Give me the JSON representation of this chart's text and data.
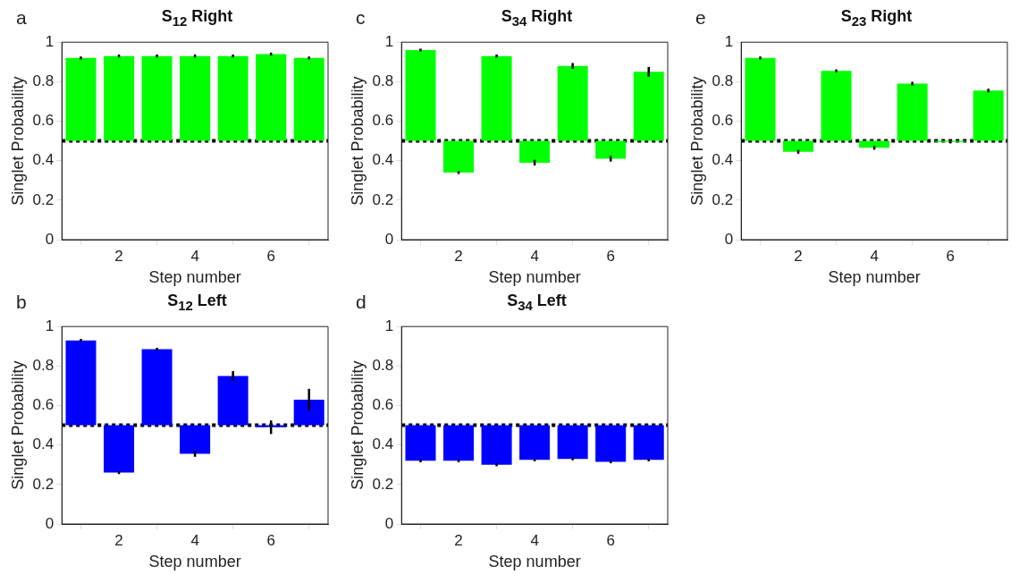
{
  "chart_data": [
    {
      "type": "bar",
      "title": "S$_{12}$ Right",
      "xlabel": "Step number",
      "ylabel": "Singlet Probability",
      "annotations": [
        "a"
      ],
      "x": [
        1,
        2,
        3,
        4,
        5,
        6,
        7
      ],
      "xlim": [
        0.5,
        7.5
      ],
      "xticks": [
        2,
        4,
        6
      ],
      "ylim": [
        0,
        1
      ],
      "yticks": [
        0,
        0.2,
        0.4,
        0.6,
        0.8,
        1
      ],
      "color": "#00ff00",
      "base": [
        0.5,
        0.5,
        0.5,
        0.5,
        0.5,
        0.5,
        0.5
      ],
      "values": [
        0.42,
        0.43,
        0.43,
        0.43,
        0.43,
        0.44,
        0.42
      ],
      "errors": [
        0.003,
        0.003,
        0.003,
        0.003,
        0.003,
        0.003,
        0.003
      ],
      "ref_lines": [
        {
          "axis": "y",
          "value": 0.5,
          "color": "#000000",
          "line_style": "dotted"
        }
      ]
    },
    {
      "type": "bar",
      "title": "S$_{34}$ Right",
      "xlabel": "Step number",
      "ylabel": "Singlet Probability",
      "annotations": [
        "c"
      ],
      "x": [
        1,
        2,
        3,
        4,
        5,
        6,
        7
      ],
      "xlim": [
        0.5,
        7.5
      ],
      "xticks": [
        2,
        4,
        6
      ],
      "ylim": [
        0,
        1
      ],
      "yticks": [
        0,
        0.2,
        0.4,
        0.6,
        0.8,
        1
      ],
      "color": "#00ff00",
      "base": [
        0.5,
        0.5,
        0.5,
        0.5,
        0.5,
        0.5,
        0.5
      ],
      "values": [
        0.46,
        -0.16,
        0.43,
        -0.11,
        0.38,
        -0.09,
        0.35
      ],
      "errors": [
        0.003,
        0.003,
        0.003,
        0.01,
        0.01,
        0.01,
        0.02
      ],
      "ref_lines": [
        {
          "axis": "y",
          "value": 0.5,
          "color": "#000000",
          "line_style": "dotted"
        }
      ]
    },
    {
      "type": "bar",
      "title": "S$_{23}$ Right",
      "xlabel": "Step number",
      "ylabel": "Singlet Probability",
      "annotations": [
        "e"
      ],
      "x": [
        1,
        2,
        3,
        4,
        5,
        6,
        7
      ],
      "xlim": [
        0.5,
        7.5
      ],
      "xticks": [
        2,
        4,
        6
      ],
      "ylim": [
        0,
        1
      ],
      "yticks": [
        0,
        0.2,
        0.4,
        0.6,
        0.8,
        1
      ],
      "color": "#00ff00",
      "base": [
        0.5,
        0.5,
        0.5,
        0.5,
        0.5,
        0.5,
        0.5
      ],
      "values": [
        0.42,
        -0.055,
        0.355,
        -0.035,
        0.29,
        -0.005,
        0.255
      ],
      "errors": [
        0.003,
        0.005,
        0.003,
        0.005,
        0.005,
        0.003,
        0.005
      ],
      "ref_lines": [
        {
          "axis": "y",
          "value": 0.5,
          "color": "#000000",
          "line_style": "dotted"
        }
      ]
    },
    {
      "type": "bar",
      "title": "S$_{12}$ Left",
      "xlabel": "Step number",
      "ylabel": "Singlet Probability",
      "annotations": [
        "b"
      ],
      "x": [
        1,
        2,
        3,
        4,
        5,
        6,
        7
      ],
      "xlim": [
        0.5,
        7.5
      ],
      "xticks": [
        2,
        4,
        6
      ],
      "ylim": [
        0,
        1
      ],
      "yticks": [
        0,
        0.2,
        0.4,
        0.6,
        0.8,
        1
      ],
      "color": "#0000ff",
      "base": [
        0.5,
        0.5,
        0.5,
        0.5,
        0.5,
        0.5,
        0.5
      ],
      "values": [
        0.43,
        -0.24,
        0.385,
        -0.145,
        0.25,
        -0.01,
        0.13
      ],
      "errors": [
        0.003,
        0.003,
        0.003,
        0.01,
        0.02,
        0.03,
        0.05
      ],
      "ref_lines": [
        {
          "axis": "y",
          "value": 0.5,
          "color": "#000000",
          "line_style": "dotted"
        }
      ]
    },
    {
      "type": "bar",
      "title": "S$_{34}$ Left",
      "xlabel": "Step number",
      "ylabel": "Singlet Probability",
      "annotations": [
        "d"
      ],
      "x": [
        1,
        2,
        3,
        4,
        5,
        6,
        7
      ],
      "xlim": [
        0.5,
        7.5
      ],
      "xticks": [
        2,
        4,
        6
      ],
      "ylim": [
        0,
        1
      ],
      "yticks": [
        0,
        0.2,
        0.4,
        0.6,
        0.8,
        1
      ],
      "color": "#0000ff",
      "base": [
        0.5,
        0.5,
        0.5,
        0.5,
        0.5,
        0.5,
        0.5
      ],
      "values": [
        -0.18,
        -0.18,
        -0.2,
        -0.175,
        -0.17,
        -0.185,
        -0.175
      ],
      "errors": [
        0.003,
        0.003,
        0.003,
        0.003,
        0.003,
        0.003,
        0.003
      ],
      "ref_lines": [
        {
          "axis": "y",
          "value": 0.5,
          "color": "#000000",
          "line_style": "dotted"
        }
      ]
    }
  ]
}
